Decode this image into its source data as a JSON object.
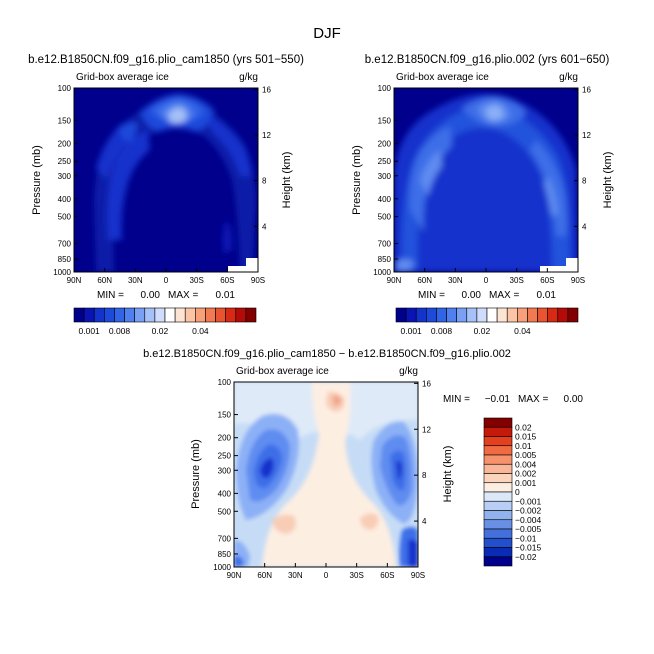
{
  "figure": {
    "title": "DJF"
  },
  "chart_data": [
    {
      "type": "heatmap",
      "panel": "top-left",
      "title": "b.e12.B1850CN.f09_g16.plio_cam1850 (yrs 501−550)",
      "variable": "Grid-box average ice",
      "units": "g/kg",
      "ylabel": "Pressure (mb)",
      "ylabel_right": "Height (km)",
      "x_ticks": [
        "90N",
        "60N",
        "30N",
        "0",
        "30S",
        "60S",
        "90S"
      ],
      "y_ticks": [
        "100",
        "150",
        "200",
        "250",
        "300",
        "400",
        "500",
        "700",
        "850",
        "1000"
      ],
      "y_ticks_right": [
        "16",
        "12",
        "8",
        "4"
      ],
      "ylim": [
        1000,
        100
      ],
      "min_label": "MIN =",
      "min_value": "0.00",
      "max_label": "MAX =",
      "max_value": "0.01"
    },
    {
      "type": "heatmap",
      "panel": "top-right",
      "title": "b.e12.B1850CN.f09_g16.plio.002 (yrs 601−650)",
      "variable": "Grid-box average ice",
      "units": "g/kg",
      "ylabel": "Pressure (mb)",
      "ylabel_right": "Height (km)",
      "x_ticks": [
        "90N",
        "60N",
        "30N",
        "0",
        "30S",
        "60S",
        "90S"
      ],
      "y_ticks": [
        "100",
        "150",
        "200",
        "250",
        "300",
        "400",
        "500",
        "700",
        "850",
        "1000"
      ],
      "y_ticks_right": [
        "16",
        "12",
        "8",
        "4"
      ],
      "ylim": [
        1000,
        100
      ],
      "min_label": "MIN =",
      "min_value": "0.00",
      "max_label": "MAX =",
      "max_value": "0.01"
    },
    {
      "type": "heatmap",
      "panel": "bottom-difference",
      "title": "b.e12.B1850CN.f09_g16.plio_cam1850 − b.e12.B1850CN.f09_g16.plio.002",
      "variable": "Grid-box average ice",
      "units": "g/kg",
      "ylabel": "Pressure (mb)",
      "ylabel_right": "Height (km)",
      "x_ticks": [
        "90N",
        "60N",
        "30N",
        "0",
        "30S",
        "60S",
        "90S"
      ],
      "y_ticks": [
        "100",
        "150",
        "200",
        "250",
        "300",
        "400",
        "500",
        "700",
        "850",
        "1000"
      ],
      "y_ticks_right": [
        "16",
        "12",
        "8",
        "4"
      ],
      "ylim": [
        1000,
        100
      ],
      "min_label": "MIN =",
      "min_value": "−0.01",
      "max_label": "MAX =",
      "max_value": "0.00"
    }
  ],
  "colorbars": {
    "top_horizontal": {
      "colors": [
        "#00008c",
        "#0a14b4",
        "#1432cc",
        "#1e4adc",
        "#3264e6",
        "#5080ee",
        "#7aa0f4",
        "#a6c0f8",
        "#d0dcfc",
        "#ffffff",
        "#fde4d2",
        "#fbc4a4",
        "#f7a07a",
        "#f27a52",
        "#e8542f",
        "#d62a14",
        "#b40a08",
        "#820000"
      ],
      "labels": [
        "0.001",
        "0.008",
        "0.02",
        "0.04"
      ]
    },
    "bottom_vertical": {
      "colors": [
        "#820000",
        "#c41a0c",
        "#e2401e",
        "#f06a42",
        "#f6926c",
        "#fab696",
        "#fcd4bc",
        "#fdeee2",
        "#dce8f8",
        "#b8cef4",
        "#92b2ee",
        "#6a90e6",
        "#4470dc",
        "#2250cc",
        "#0a2cb4",
        "#00008c"
      ],
      "labels": [
        "0.02",
        "0.015",
        "0.01",
        "0.005",
        "0.004",
        "0.002",
        "0.001",
        "0",
        "−0.001",
        "−0.002",
        "−0.004",
        "−0.005",
        "−0.01",
        "−0.015",
        "−0.02"
      ]
    }
  },
  "palette": {
    "deep": "#00008c",
    "navy": "#0a1fa8",
    "blue1": "#1432cc",
    "blue2": "#2452dc",
    "blue3": "#3d6ee8",
    "blue4": "#5f8cf0",
    "blue5": "#8cb0f6",
    "paleblue": "#c6dcf6",
    "veryPale": "#dfeaf8",
    "cream": "#fdeee2",
    "peach": "#f8cdb6",
    "salmon": "#f0a68c",
    "redish": "#e6765a",
    "missing": "#ffffff"
  }
}
